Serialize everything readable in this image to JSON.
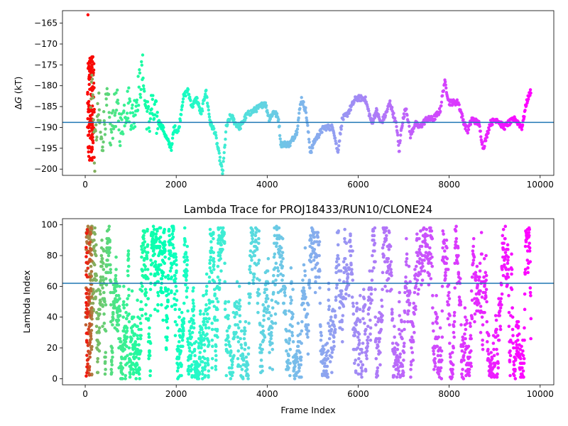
{
  "chart_data": [
    {
      "type": "scatter",
      "title": "",
      "xlabel": "",
      "ylabel": "ΔG (kT)",
      "ylabel_parts": {
        "symbol": "Δ",
        "italic": "G",
        "rest": " (kT)"
      },
      "xlim": [
        -500,
        10300
      ],
      "ylim": [
        -201.5,
        -162
      ],
      "xticks": [
        0,
        2000,
        4000,
        6000,
        8000,
        10000
      ],
      "yticks": [
        -165,
        -170,
        -175,
        -180,
        -185,
        -190,
        -195,
        -200
      ],
      "tick_labels_x": [
        "0",
        "2000",
        "4000",
        "6000",
        "8000",
        "10000"
      ],
      "tick_labels_y": [
        "−165",
        "−170",
        "−175",
        "−180",
        "−185",
        "−190",
        "−195",
        "−200"
      ],
      "hline": -188.8,
      "hline_color": "#1f77b4",
      "colormap": "rainbow (red = early frames, violet = late frames)",
      "x_max": 9800,
      "path_points": [
        [
          100,
          -200
        ],
        [
          130,
          -182
        ],
        [
          160,
          -176
        ],
        [
          200,
          -198
        ],
        [
          250,
          -190
        ],
        [
          300,
          -186
        ],
        [
          360,
          -195
        ],
        [
          420,
          -188
        ],
        [
          500,
          -184
        ],
        [
          560,
          -193
        ],
        [
          620,
          -187
        ],
        [
          700,
          -185
        ],
        [
          780,
          -191
        ],
        [
          860,
          -186
        ],
        [
          950,
          -184
        ],
        [
          1050,
          -188
        ],
        [
          1150,
          -182
        ],
        [
          1280,
          -176
        ],
        [
          1300,
          -183
        ],
        [
          1400,
          -189
        ],
        [
          1450,
          -185
        ],
        [
          1500,
          -187
        ],
        [
          1700,
          -190
        ],
        [
          1800,
          -193
        ],
        [
          1900,
          -195
        ],
        [
          1950,
          -190
        ],
        [
          2050,
          -191
        ],
        [
          2150,
          -183
        ],
        [
          2250,
          -181
        ],
        [
          2350,
          -185
        ],
        [
          2450,
          -183
        ],
        [
          2550,
          -187
        ],
        [
          2650,
          -181
        ],
        [
          2750,
          -189
        ],
        [
          2850,
          -191
        ],
        [
          2950,
          -197
        ],
        [
          3020,
          -201
        ],
        [
          3100,
          -190
        ],
        [
          3200,
          -187
        ],
        [
          3300,
          -189
        ],
        [
          3400,
          -190
        ],
        [
          3550,
          -187
        ],
        [
          3700,
          -186
        ],
        [
          3850,
          -185
        ],
        [
          3950,
          -184
        ],
        [
          4050,
          -188
        ],
        [
          4150,
          -186
        ],
        [
          4250,
          -188
        ],
        [
          4300,
          -194
        ],
        [
          4500,
          -194
        ],
        [
          4650,
          -191
        ],
        [
          4750,
          -183
        ],
        [
          4850,
          -186
        ],
        [
          4950,
          -196
        ],
        [
          5050,
          -193
        ],
        [
          5250,
          -190
        ],
        [
          5450,
          -190
        ],
        [
          5550,
          -196
        ],
        [
          5650,
          -188
        ],
        [
          5750,
          -187
        ],
        [
          5950,
          -183
        ],
        [
          6150,
          -183
        ],
        [
          6300,
          -189
        ],
        [
          6400,
          -186
        ],
        [
          6500,
          -189
        ],
        [
          6600,
          -187
        ],
        [
          6700,
          -184
        ],
        [
          6850,
          -190
        ],
        [
          6900,
          -196
        ],
        [
          6950,
          -190
        ],
        [
          7050,
          -185
        ],
        [
          7150,
          -192
        ],
        [
          7250,
          -189
        ],
        [
          7350,
          -190
        ],
        [
          7500,
          -188
        ],
        [
          7650,
          -188
        ],
        [
          7800,
          -186
        ],
        [
          7900,
          -179
        ],
        [
          8000,
          -184
        ],
        [
          8200,
          -184
        ],
        [
          8300,
          -188
        ],
        [
          8400,
          -191
        ],
        [
          8500,
          -188
        ],
        [
          8650,
          -189
        ],
        [
          8750,
          -195
        ],
        [
          8900,
          -189
        ],
        [
          9050,
          -188
        ],
        [
          9200,
          -190
        ],
        [
          9300,
          -189
        ],
        [
          9450,
          -188
        ],
        [
          9600,
          -190
        ],
        [
          9700,
          -184
        ],
        [
          9800,
          -181
        ]
      ],
      "early_scatter": {
        "x_range": [
          50,
          200
        ],
        "y_range": [
          -200,
          -163
        ],
        "outlier": [
          60,
          -163
        ]
      }
    },
    {
      "type": "scatter",
      "title": "Lambda Trace for PROJ18433/RUN10/CLONE24",
      "xlabel": "Frame Index",
      "ylabel": "Lambda Index",
      "xlim": [
        -500,
        10300
      ],
      "ylim": [
        -4,
        104
      ],
      "xticks": [
        0,
        2000,
        4000,
        6000,
        8000,
        10000
      ],
      "yticks": [
        0,
        20,
        40,
        60,
        80,
        100
      ],
      "tick_labels_x": [
        "0",
        "2000",
        "4000",
        "6000",
        "8000",
        "10000"
      ],
      "tick_labels_y": [
        "0",
        "20",
        "40",
        "60",
        "80",
        "100"
      ],
      "hline": 62,
      "hline_color": "#1f77b4",
      "colormap": "rainbow (red = early frames, violet = late frames)",
      "x_max": 9800,
      "lambda_range": [
        0,
        99
      ]
    }
  ]
}
